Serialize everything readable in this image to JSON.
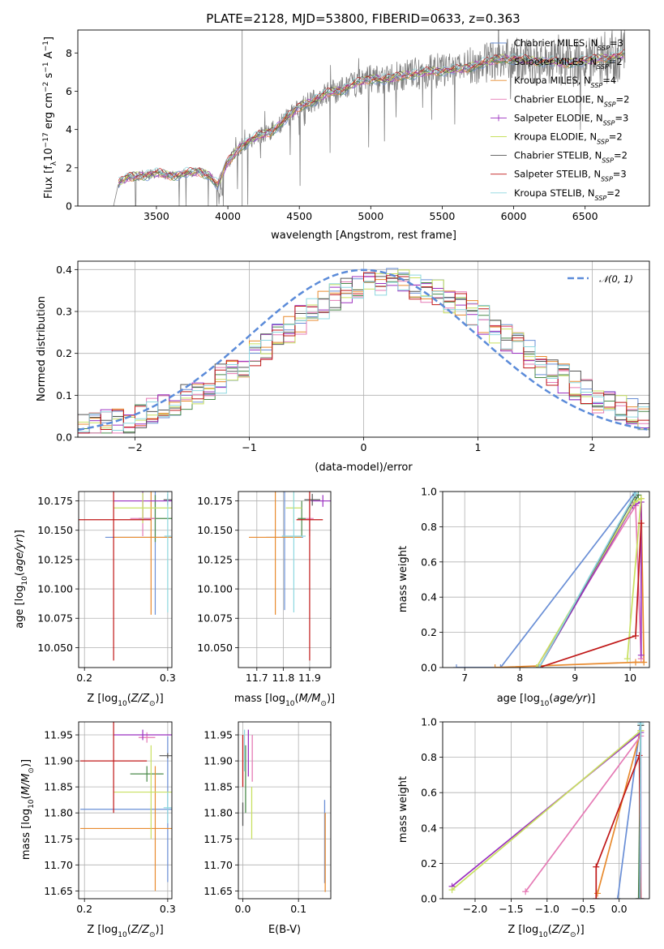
{
  "figure": {
    "title": "PLATE=2128, MJD=53800, FIBERID=0633, z=0.363"
  },
  "models": [
    {
      "name": "Chabrier MILES, N$_{SSP}$=3",
      "label_main": "Chabrier MILES, N",
      "label_sub": "SSP",
      "label_end": "=3",
      "color": "#6a8fd6"
    },
    {
      "name": "Salpeter MILES, N$_{SSP}$=2",
      "label_main": "Salpeter MILES, N",
      "label_sub": "SSP",
      "label_end": "=2",
      "color": "#4a8a4a"
    },
    {
      "name": "Kroupa MILES, N$_{SSP}$=4",
      "label_main": "Kroupa MILES, N",
      "label_sub": "SSP",
      "label_end": "=4",
      "color": "#e88a2e"
    },
    {
      "name": "Chabrier ELODIE, N$_{SSP}$=2",
      "label_main": "Chabrier ELODIE, N",
      "label_sub": "SSP",
      "label_end": "=2",
      "color": "#e57ab5"
    },
    {
      "name": "Salpeter ELODIE, N$_{SSP}$=3",
      "label_main": "Salpeter ELODIE, N",
      "label_sub": "SSP",
      "label_end": "=3",
      "color": "#9b30c0"
    },
    {
      "name": "Kroupa ELODIE, N$_{SSP}$=2",
      "label_main": "Kroupa ELODIE, N",
      "label_sub": "SSP",
      "label_end": "=2",
      "color": "#c8e060"
    },
    {
      "name": "Chabrier STELIB, N$_{SSP}$=2",
      "label_main": "Chabrier STELIB, N",
      "label_sub": "SSP",
      "label_end": "=2",
      "color": "#555555"
    },
    {
      "name": "Salpeter STELIB, N$_{SSP}$=3",
      "label_main": "Salpeter STELIB, N",
      "label_sub": "SSP",
      "label_end": "=3",
      "color": "#c01818"
    },
    {
      "name": "Kroupa STELIB, N$_{SSP}$=2",
      "label_main": "Kroupa STELIB, N",
      "label_sub": "SSP",
      "label_end": "=2",
      "color": "#8ed8e0"
    }
  ],
  "chart_data": [
    {
      "id": "spectrum",
      "type": "line",
      "xlabel": "wavelength [Angstrom, rest frame]",
      "ylabel": "Flux [f$_\\lambda$ 10$^{-17}$ erg cm$^{-2}$ s$^{-1}$ A$^{-1}$]",
      "xlim": [
        2950,
        6950
      ],
      "ylim": [
        0,
        9.2
      ],
      "xticks": [
        3500,
        4000,
        4500,
        5000,
        5500,
        6000,
        6500
      ],
      "yticks": [
        0,
        2,
        4,
        6,
        8
      ],
      "grid": false,
      "legend": "right",
      "data_color": "#808080",
      "data_range": [
        3200,
        6780
      ],
      "continuum": [
        [
          3200,
          0
        ],
        [
          3235,
          1.2
        ],
        [
          3300,
          1.5
        ],
        [
          3400,
          1.6
        ],
        [
          3500,
          1.7
        ],
        [
          3600,
          1.6
        ],
        [
          3700,
          1.7
        ],
        [
          3800,
          1.8
        ],
        [
          3870,
          1.6
        ],
        [
          3930,
          1.1
        ],
        [
          3990,
          2.2
        ],
        [
          4100,
          3.2
        ],
        [
          4200,
          3.6
        ],
        [
          4300,
          3.9
        ],
        [
          4400,
          4.5
        ],
        [
          4500,
          5.2
        ],
        [
          4600,
          5.5
        ],
        [
          4700,
          5.9
        ],
        [
          4800,
          6.1
        ],
        [
          4900,
          6.4
        ],
        [
          5000,
          6.7
        ],
        [
          5100,
          6.6
        ],
        [
          5200,
          6.8
        ],
        [
          5300,
          6.9
        ],
        [
          5400,
          7.0
        ],
        [
          5500,
          7.1
        ],
        [
          5600,
          7.1
        ],
        [
          5700,
          7.3
        ],
        [
          5800,
          7.5
        ],
        [
          5900,
          7.7
        ],
        [
          6000,
          7.7
        ],
        [
          6100,
          7.6
        ],
        [
          6200,
          7.6
        ],
        [
          6300,
          7.5
        ],
        [
          6400,
          7.5
        ],
        [
          6500,
          7.6
        ],
        [
          6600,
          7.7
        ],
        [
          6780,
          7.9
        ]
      ]
    },
    {
      "id": "residuals",
      "type": "bar",
      "xlabel": "(data-model)/error",
      "ylabel": "Normed distribution",
      "xlim": [
        -2.5,
        2.5
      ],
      "ylim": [
        0,
        0.42
      ],
      "xticks": [
        -2,
        -1,
        0,
        1,
        2
      ],
      "yticks": [
        0.0,
        0.1,
        0.2,
        0.3,
        0.4
      ],
      "grid": true,
      "legend": "top-right",
      "series": [
        {
          "name": "$\\mathcal{N}(0,1)$",
          "label": "𝒩(0, 1)",
          "style": "dashed",
          "color": "#5b8bd9"
        }
      ],
      "bin_width": 0.1
    },
    {
      "id": "age-vs-Z",
      "type": "scatter",
      "xlabel": "Z [log$_{10}$(Z/Z$_\\odot$)]",
      "ylabel": "age  [log$_{10}$(age/yr)]",
      "xlim": [
        0.193,
        0.305
      ],
      "ylim": [
        10.033,
        10.183
      ],
      "xticks": [
        0.2,
        0.3
      ],
      "yticks": [
        10.05,
        10.075,
        10.1,
        10.125,
        10.15,
        10.175
      ],
      "grid": true,
      "points": [
        {
          "x": 0.285,
          "y": 10.144,
          "xerr": 0.06,
          "yerr": 0.066
        },
        {
          "x": 0.285,
          "y": 10.16,
          "xerr": 0.02,
          "yerr": 0.02
        },
        {
          "x": 0.28,
          "y": 10.144,
          "xerr": 0.045,
          "yerr": 0.066
        },
        {
          "x": 0.27,
          "y": 10.16,
          "xerr": 0.015,
          "yerr": 0.015
        },
        {
          "x": 0.27,
          "y": 10.175,
          "xerr": 0.035,
          "yerr": 0.015
        },
        {
          "x": 0.27,
          "y": 10.169,
          "xerr": 0.035,
          "yerr": 0.013
        },
        {
          "x": 0.3,
          "y": 10.176,
          "xerr": 0.005,
          "yerr": 0.005
        },
        {
          "x": 0.235,
          "y": 10.159,
          "xerr": 0.045,
          "yerr": 0.12
        },
        {
          "x": 0.3,
          "y": 10.145,
          "xerr": 0.004,
          "yerr": 0.065
        }
      ]
    },
    {
      "id": "age-vs-mass",
      "type": "scatter",
      "xlabel": "mass [log$_{10}$(M/M$_\\odot$)]",
      "ylabel": "",
      "xlim": [
        11.63,
        11.98
      ],
      "ylim": [
        10.033,
        10.183
      ],
      "xticks": [
        11.7,
        11.8,
        11.9
      ],
      "yticks": [
        10.05,
        10.075,
        10.1,
        10.125,
        10.15,
        10.175
      ],
      "grid": true,
      "points": [
        {
          "x": 11.805,
          "y": 10.144,
          "xerr": 0.07,
          "yerr": 0.062
        },
        {
          "x": 11.87,
          "y": 10.16,
          "xerr": 0.015,
          "yerr": 0.015
        },
        {
          "x": 11.77,
          "y": 10.144,
          "xerr": 0.1,
          "yerr": 0.066
        },
        {
          "x": 11.9,
          "y": 10.16,
          "xerr": 0.015,
          "yerr": 0.015
        },
        {
          "x": 11.95,
          "y": 10.175,
          "xerr": 0.045,
          "yerr": 0.005
        },
        {
          "x": 11.84,
          "y": 10.169,
          "xerr": 0.03,
          "yerr": 0.013
        },
        {
          "x": 11.91,
          "y": 10.176,
          "xerr": 0.03,
          "yerr": 0.005
        },
        {
          "x": 11.9,
          "y": 10.159,
          "xerr": 0.05,
          "yerr": 0.12
        },
        {
          "x": 11.84,
          "y": 10.145,
          "xerr": 0.045,
          "yerr": 0.065
        }
      ]
    },
    {
      "id": "mass-weight-vs-age",
      "type": "line",
      "xlabel": "age  [log$_{10}$(age/yr)]",
      "ylabel": "mass weight",
      "xlim": [
        6.6,
        10.35
      ],
      "ylim": [
        0,
        1
      ],
      "xticks": [
        7,
        8,
        9,
        10
      ],
      "yticks": [
        0.0,
        0.2,
        0.4,
        0.6,
        0.8,
        1.0
      ],
      "grid": true
    },
    {
      "id": "mass-vs-Z",
      "type": "scatter",
      "xlabel": "Z [log$_{10}$(Z/Z$_\\odot$)]",
      "ylabel": "mass [log$_{10}$(M/M$_\\odot$)]",
      "xlim": [
        0.193,
        0.305
      ],
      "ylim": [
        11.635,
        11.975
      ],
      "xticks": [
        0.2,
        0.3
      ],
      "yticks": [
        11.65,
        11.7,
        11.75,
        11.8,
        11.85,
        11.9,
        11.95
      ],
      "grid": true,
      "points": [
        {
          "x": 0.3,
          "y": 11.807,
          "xerr": 0.105,
          "yerr": 0.14
        },
        {
          "x": 0.275,
          "y": 11.875,
          "xerr": 0.02,
          "yerr": 0.015
        },
        {
          "x": 0.285,
          "y": 11.77,
          "xerr": 0.09,
          "yerr": 0.12
        },
        {
          "x": 0.275,
          "y": 11.945,
          "xerr": 0.01,
          "yerr": 0.01
        },
        {
          "x": 0.27,
          "y": 11.95,
          "xerr": 0.035,
          "yerr": 0.01
        },
        {
          "x": 0.28,
          "y": 11.84,
          "xerr": 0.045,
          "yerr": 0.09
        },
        {
          "x": 0.3,
          "y": 11.91,
          "xerr": 0.01,
          "yerr": 0.005
        },
        {
          "x": 0.235,
          "y": 11.9,
          "xerr": 0.04,
          "yerr": 0.1
        },
        {
          "x": 0.3,
          "y": 11.81,
          "xerr": 0.005,
          "yerr": 0.03
        }
      ]
    },
    {
      "id": "mass-vs-EBV",
      "type": "scatter",
      "xlabel": "E(B-V)",
      "ylabel": "",
      "xlim": [
        -0.008,
        0.158
      ],
      "ylim": [
        11.635,
        11.975
      ],
      "xticks": [
        0.0,
        0.1
      ],
      "yticks": [
        11.65,
        11.7,
        11.75,
        11.8,
        11.85,
        11.9,
        11.95
      ],
      "grid": true
    },
    {
      "id": "mass-weight-vs-Z",
      "type": "line",
      "xlabel": "Z [log$_{10}$(Z/Z$_\\odot$)]",
      "ylabel": "mass weight",
      "xlim": [
        -2.45,
        0.42
      ],
      "ylim": [
        0,
        1
      ],
      "xticks": [
        -2.0,
        -1.5,
        -1.0,
        -0.5,
        0.0
      ],
      "yticks": [
        0.0,
        0.2,
        0.4,
        0.6,
        0.8,
        1.0
      ],
      "grid": true
    }
  ]
}
